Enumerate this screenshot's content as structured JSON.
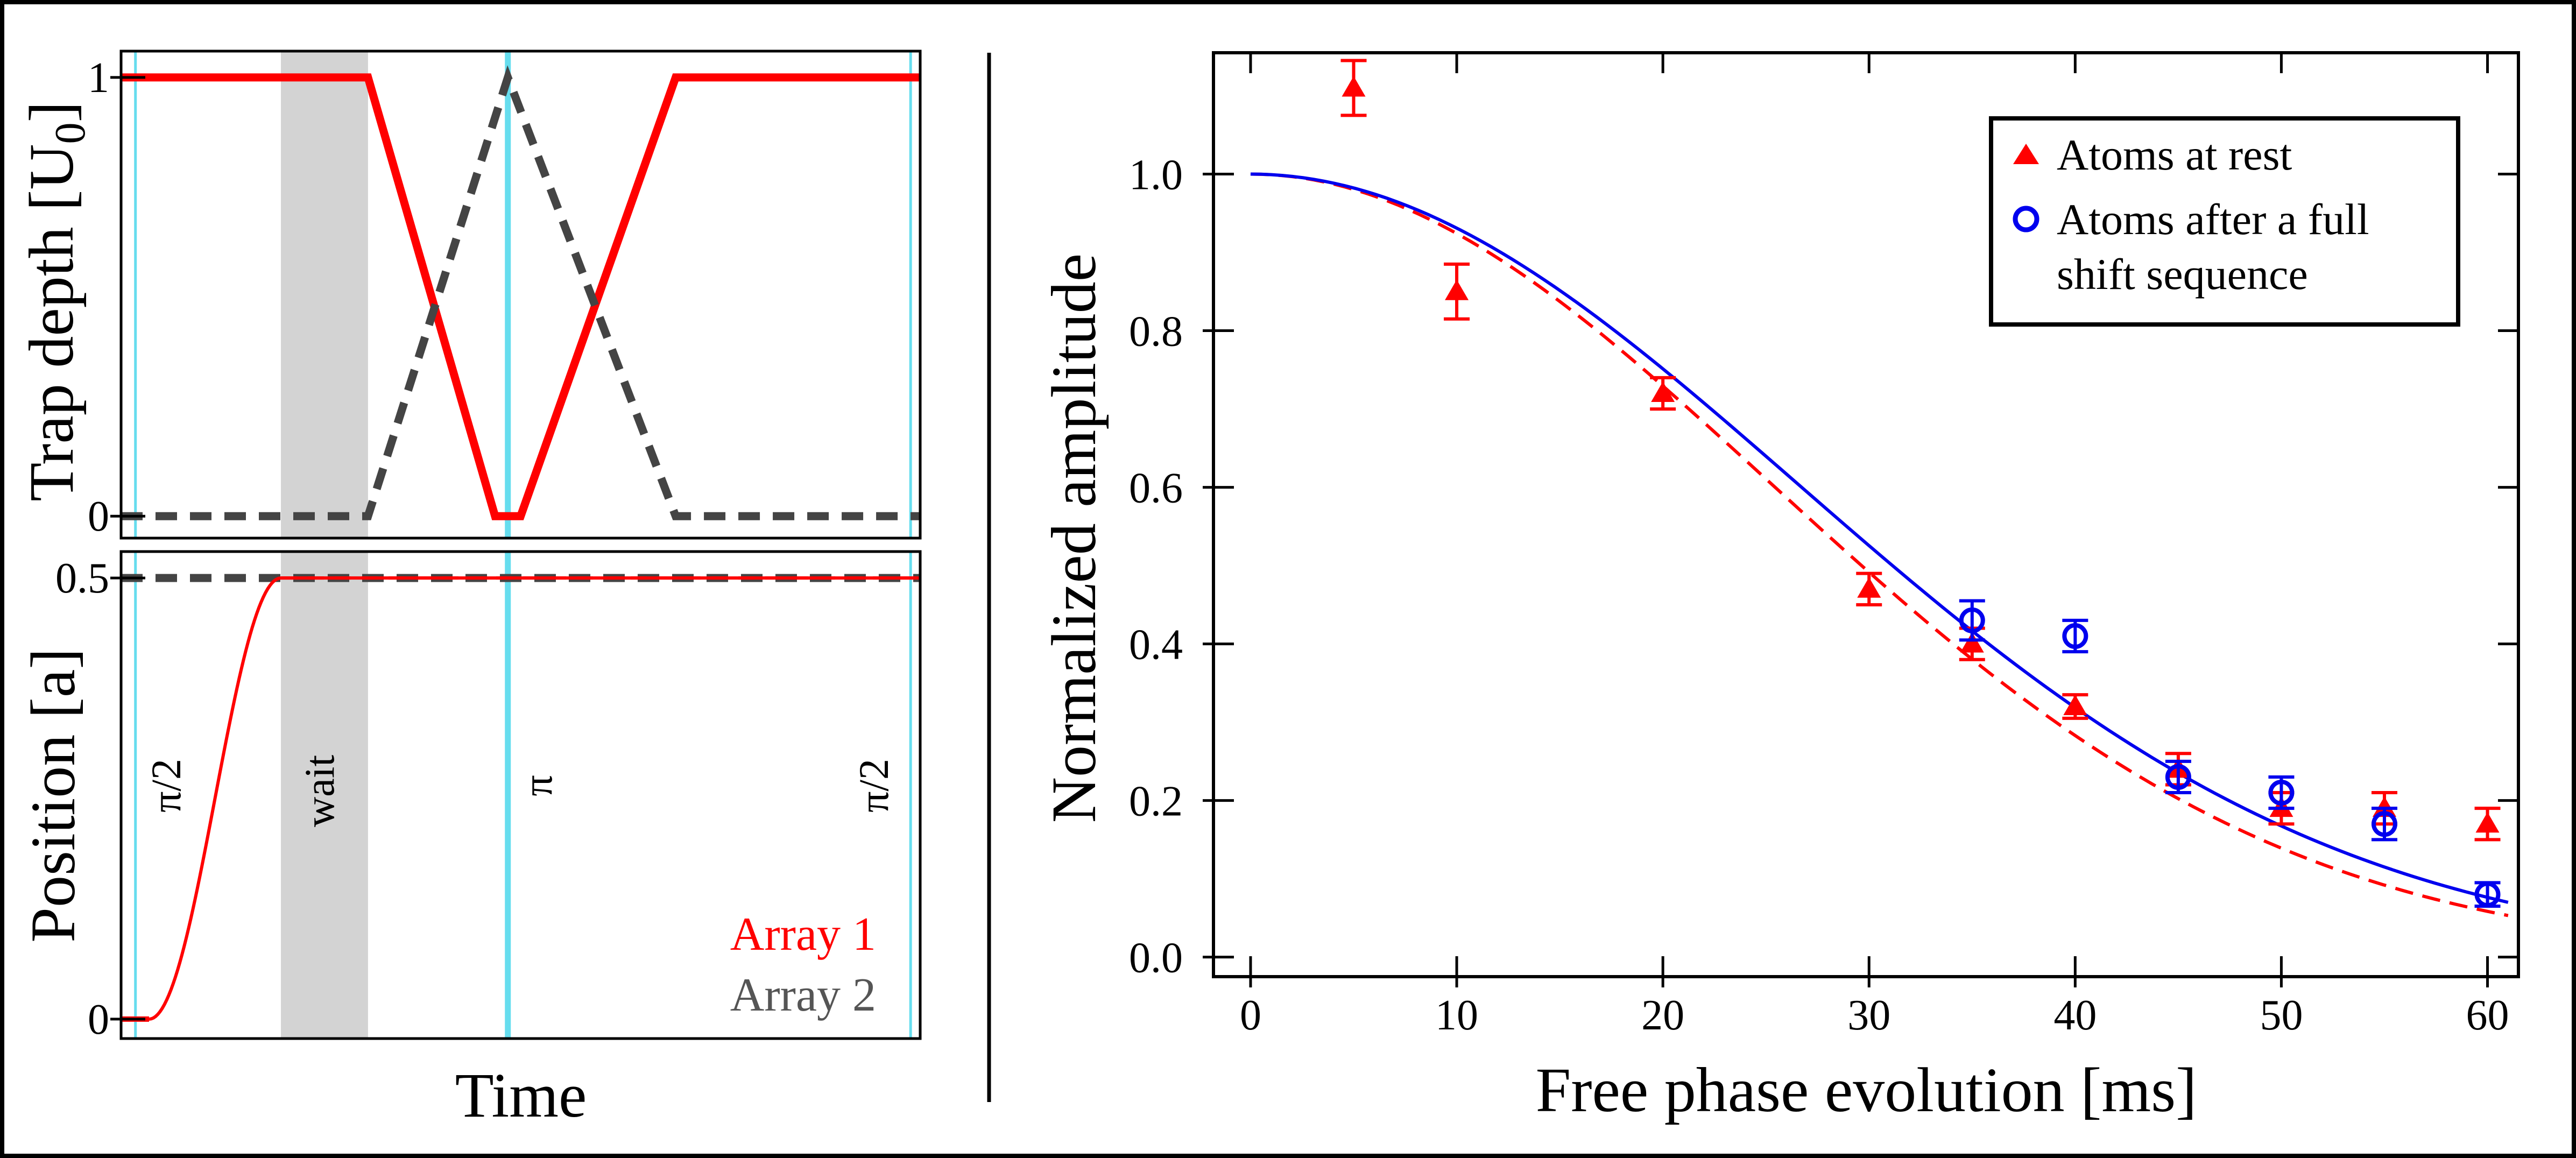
{
  "colors": {
    "red": "#ff0000",
    "gray": "#444444",
    "cyan": "#66ddee",
    "wait_shade": "#d3d3d3",
    "blue": "#0000ee",
    "legend_gray": "#555555"
  },
  "chart_data": [
    {
      "id": "trap-depth",
      "type": "line",
      "ylabel_main": "Trap depth [U",
      "ylabel_sub": "0",
      "ylabel_close": "]",
      "xlim": [
        0,
        10
      ],
      "ylim": [
        -0.05,
        1.06
      ],
      "yticks": [
        {
          "v": 1,
          "label": "1"
        },
        {
          "v": 0,
          "label": "0"
        }
      ],
      "series": [
        {
          "name": "Array 1",
          "style": "solid",
          "color": "red",
          "x": [
            0,
            3.09,
            4.68,
            5.0,
            6.94,
            10
          ],
          "y": [
            1,
            1,
            0,
            0,
            1,
            1
          ]
        },
        {
          "name": "Array 2",
          "style": "dashed",
          "color": "gray",
          "x": [
            0,
            3.09,
            4.84,
            6.94,
            10
          ],
          "y": [
            0,
            0,
            1,
            0,
            0
          ]
        }
      ]
    },
    {
      "id": "position",
      "type": "line",
      "ylabel": "Position [a]",
      "xlabel": "Time",
      "xlim": [
        0,
        10
      ],
      "ylim": [
        -0.022,
        0.53
      ],
      "yticks": [
        {
          "v": 0.5,
          "label": "0.5"
        },
        {
          "v": 0,
          "label": "0"
        }
      ],
      "pulses": [
        {
          "label": "π/2",
          "x": 0.18
        },
        {
          "label": "π",
          "x": 4.84
        },
        {
          "label": "π/2",
          "x": 9.88
        }
      ],
      "wait": {
        "label": "wait",
        "x0": 2.0,
        "x1": 3.09
      },
      "series": [
        {
          "name": "Array 1",
          "style": "solid",
          "color": "red",
          "x": [
            0,
            0.35,
            2.0,
            10
          ],
          "y": [
            0,
            0,
            0.5,
            0.5
          ]
        },
        {
          "name": "Array 2",
          "style": "dashed",
          "color": "gray",
          "x": [
            0,
            10
          ],
          "y": [
            0.5,
            0.5
          ]
        }
      ],
      "legend": [
        "Array 1",
        "Array 2"
      ]
    },
    {
      "id": "amplitude",
      "type": "scatter",
      "xlabel": "Free phase evolution [ms]",
      "ylabel": "Normalized amplitude",
      "xlim": [
        -1.8,
        61.5
      ],
      "ylim": [
        -0.025,
        1.155
      ],
      "xticks": [
        0,
        10,
        20,
        30,
        40,
        50,
        60
      ],
      "yticks": [
        "0.0",
        "0.2",
        "0.4",
        "0.6",
        "0.8",
        "1.0"
      ],
      "series": [
        {
          "name": "Atoms at rest",
          "marker": "triangle",
          "color": "red",
          "fit": "dashed",
          "fit_tau": 35.6,
          "x": [
            5,
            10,
            20,
            30,
            35,
            40,
            45,
            50,
            55,
            60
          ],
          "y": [
            1.11,
            0.85,
            0.72,
            0.47,
            0.4,
            0.32,
            0.24,
            0.19,
            0.19,
            0.17
          ],
          "err": [
            0.035,
            0.035,
            0.02,
            0.02,
            0.02,
            0.015,
            0.02,
            0.02,
            0.02,
            0.02
          ]
        },
        {
          "name": "Atoms after a full shift sequence",
          "marker": "circle",
          "color": "blue",
          "fit": "solid",
          "fit_tau": 37.4,
          "x": [
            35,
            40,
            45,
            50,
            55,
            60
          ],
          "y": [
            0.43,
            0.41,
            0.23,
            0.21,
            0.17,
            0.08
          ],
          "err": [
            0.025,
            0.02,
            0.02,
            0.02,
            0.02,
            0.015
          ]
        }
      ],
      "legend": {
        "line1": "Atoms at rest",
        "line2a": "Atoms after a full",
        "line2b": "shift sequence"
      }
    }
  ]
}
